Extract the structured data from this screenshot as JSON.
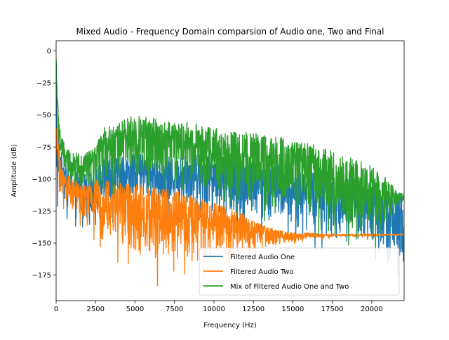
{
  "chart_data": {
    "type": "line",
    "title": "Mixed Audio - Frequency Domain comparsion of Audio one, Two and Final",
    "xlabel": "Frequency (Hz)",
    "ylabel": "Amplitude (dB)",
    "xlim": [
      0,
      22050
    ],
    "ylim": [
      -195,
      8
    ],
    "x_ticks": [
      0,
      2500,
      5000,
      7500,
      10000,
      12500,
      15000,
      17500,
      20000
    ],
    "x_tick_labels": [
      "0",
      "2500",
      "5000",
      "7500",
      "10000",
      "12500",
      "15000",
      "17500",
      "20000"
    ],
    "y_ticks": [
      0,
      -25,
      -50,
      -75,
      -100,
      -125,
      -150,
      -175
    ],
    "y_tick_labels": [
      "0",
      "−25",
      "−50",
      "−75",
      "−100",
      "−125",
      "−150",
      "−175"
    ],
    "legend_position": "lower-right",
    "series": [
      {
        "name": "Filtered Audio One",
        "color": "#1f77b4",
        "envelope_x": [
          0,
          100,
          300,
          600,
          1000,
          1500,
          2000,
          2500,
          3000,
          4000,
          5000,
          6000,
          7000,
          8000,
          9000,
          10000,
          11000,
          12000,
          13000,
          14000,
          15000,
          16000,
          17000,
          18000,
          19000,
          20000,
          20500,
          21000,
          21500,
          22000
        ],
        "envelope_hi": [
          0,
          -55,
          -78,
          -88,
          -92,
          -95,
          -95,
          -92,
          -85,
          -82,
          -80,
          -82,
          -83,
          -82,
          -80,
          -80,
          -82,
          -84,
          -86,
          -88,
          -90,
          -93,
          -96,
          -98,
          -100,
          -104,
          -106,
          -108,
          -110,
          -112
        ],
        "envelope_lo": [
          -150,
          -140,
          -110,
          -125,
          -130,
          -135,
          -130,
          -135,
          -130,
          -128,
          -125,
          -120,
          -125,
          -125,
          -125,
          -128,
          -130,
          -132,
          -135,
          -138,
          -140,
          -142,
          -145,
          -148,
          -150,
          -155,
          -160,
          -165,
          -170,
          -178
        ]
      },
      {
        "name": "Filtered Audio Two",
        "color": "#ff7f0e",
        "envelope_x": [
          0,
          100,
          300,
          600,
          1000,
          1500,
          2000,
          2500,
          3000,
          4000,
          5000,
          6000,
          7000,
          8000,
          9000,
          10000,
          11000,
          12000,
          13000,
          14000,
          15000,
          16000,
          17000,
          18000,
          19000,
          20000,
          21000,
          22000
        ],
        "envelope_hi": [
          -60,
          -58,
          -90,
          -95,
          -100,
          -102,
          -105,
          -100,
          -100,
          -102,
          -103,
          -105,
          -108,
          -110,
          -115,
          -118,
          -122,
          -128,
          -135,
          -140,
          -142,
          -142,
          -143,
          -143,
          -143,
          -143,
          -143,
          -143
        ],
        "envelope_lo": [
          -90,
          -95,
          -115,
          -120,
          -125,
          -130,
          -135,
          -145,
          -150,
          -160,
          -165,
          -170,
          -172,
          -170,
          -168,
          -165,
          -160,
          -158,
          -155,
          -152,
          -150,
          -147,
          -146,
          -145,
          -145,
          -145,
          -144,
          -144
        ]
      },
      {
        "name": "Mix of Filtered Audio One and Two",
        "color": "#2ca02c",
        "envelope_x": [
          0,
          100,
          300,
          600,
          1000,
          1500,
          2000,
          2500,
          3000,
          4000,
          5000,
          6000,
          7000,
          8000,
          9000,
          10000,
          11000,
          12000,
          13000,
          14000,
          15000,
          16000,
          17000,
          18000,
          19000,
          20000,
          20500,
          21000,
          21500,
          22000
        ],
        "envelope_hi": [
          0,
          -40,
          -65,
          -75,
          -80,
          -80,
          -78,
          -75,
          -60,
          -55,
          -50,
          -52,
          -55,
          -55,
          -57,
          -60,
          -62,
          -63,
          -65,
          -67,
          -70,
          -72,
          -75,
          -80,
          -85,
          -90,
          -95,
          -100,
          -108,
          -112
        ],
        "envelope_lo": [
          -20,
          -70,
          -92,
          -100,
          -105,
          -108,
          -110,
          -110,
          -105,
          -100,
          -100,
          -100,
          -100,
          -105,
          -110,
          -115,
          -118,
          -120,
          -122,
          -125,
          -128,
          -130,
          -132,
          -138,
          -145,
          -150,
          -148,
          -140,
          -125,
          -118
        ]
      }
    ]
  }
}
